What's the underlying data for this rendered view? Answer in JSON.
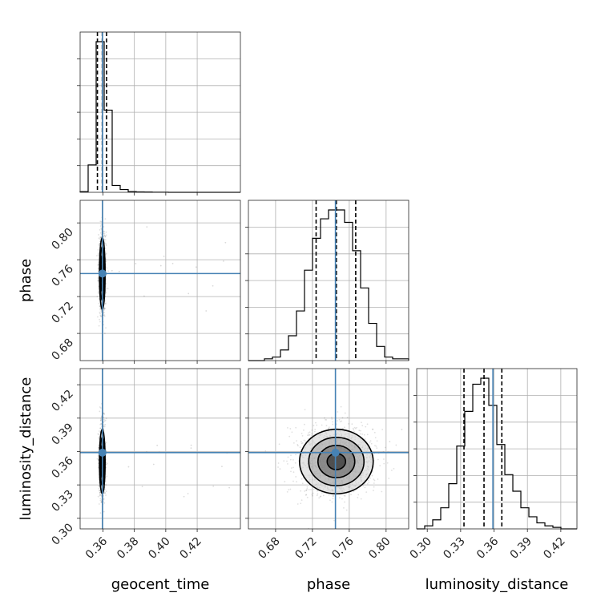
{
  "chart_data": {
    "type": "corner",
    "parameters": [
      "geocent_time",
      "phase",
      "luminosity_distance"
    ],
    "axis_labels": {
      "geocent_time": "geocent_time",
      "phase": "phase",
      "luminosity_distance": "luminosity_distance"
    },
    "ranges": {
      "geocent_time": [
        0.3455,
        0.4475
      ],
      "phase": [
        0.6505,
        0.8245
      ],
      "luminosity_distance": [
        0.2905,
        0.4345
      ]
    },
    "ticks": {
      "geocent_time": {
        "values": [
          0.36,
          0.38,
          0.4,
          0.42
        ],
        "labels": [
          "0.36",
          "0.38",
          "0.40",
          "0.42"
        ]
      },
      "phase": {
        "values": [
          0.68,
          0.72,
          0.76,
          0.8
        ],
        "labels": [
          "0.68",
          "0.72",
          "0.76",
          "0.80"
        ]
      },
      "luminosity_distance": {
        "values": [
          0.3,
          0.33,
          0.36,
          0.39,
          0.42
        ],
        "labels": [
          "0.30",
          "0.33",
          "0.36",
          "0.39",
          "0.42"
        ]
      }
    },
    "truths": {
      "geocent_time": 0.3597,
      "phase": 0.745,
      "luminosity_distance": 0.359
    },
    "truth_color": "#4682b4",
    "histograms": {
      "geocent_time": {
        "edges": [
          0.3455,
          0.3506,
          0.3557,
          0.3608,
          0.3659,
          0.371,
          0.3761,
          0.3812,
          0.3863,
          0.3914,
          0.3965,
          0.4016,
          0.4067,
          0.4118,
          0.4169,
          0.422,
          0.4271,
          0.4322,
          0.4373,
          0.4424,
          0.4475
        ],
        "counts": [
          0.5,
          20,
          110,
          60,
          5,
          2,
          0.5,
          0.3,
          0.2,
          0.1,
          0.1,
          0,
          0,
          0,
          0,
          0,
          0,
          0,
          0,
          0
        ],
        "quantiles": [
          0.3565,
          0.3596,
          0.3623
        ]
      },
      "phase": {
        "edges": [
          0.6505,
          0.6592,
          0.6679,
          0.6766,
          0.6853,
          0.694,
          0.7027,
          0.7114,
          0.7201,
          0.7288,
          0.7375,
          0.7462,
          0.7549,
          0.7636,
          0.7723,
          0.781,
          0.7897,
          0.7984,
          0.8071,
          0.8158,
          0.8245
        ],
        "counts": [
          0,
          0,
          1,
          2,
          6,
          14,
          28,
          51,
          69,
          80,
          85,
          85,
          78,
          62,
          41,
          21,
          8,
          2,
          1,
          1
        ],
        "quantiles": [
          0.724,
          0.746,
          0.767
        ]
      },
      "luminosity_distance": {
        "edges": [
          0.2905,
          0.2977,
          0.3049,
          0.3121,
          0.3193,
          0.3265,
          0.3337,
          0.3409,
          0.3481,
          0.3553,
          0.3625,
          0.3697,
          0.3769,
          0.3841,
          0.3913,
          0.3985,
          0.4057,
          0.4129,
          0.4201,
          0.4273,
          0.4345
        ],
        "counts": [
          0,
          2,
          6,
          14,
          30,
          55,
          78,
          96,
          100,
          82,
          56,
          36,
          25,
          14,
          8,
          4,
          2,
          1,
          0,
          0
        ],
        "quantiles": [
          0.333,
          0.351,
          0.367
        ]
      }
    },
    "joint": [
      {
        "x": "geocent_time",
        "y": "phase",
        "center": [
          0.3596,
          0.745
        ],
        "sigma": [
          0.0009,
          0.0195
        ]
      },
      {
        "x": "geocent_time",
        "y": "luminosity_distance",
        "center": [
          0.3596,
          0.351
        ],
        "sigma": [
          0.0009,
          0.0145
        ]
      },
      {
        "x": "phase",
        "y": "luminosity_distance",
        "center": [
          0.746,
          0.351
        ],
        "sigma": [
          0.02,
          0.0145
        ]
      }
    ],
    "contour_levels_sigma": [
      0.5,
      1.0,
      1.5,
      2.0
    ]
  }
}
